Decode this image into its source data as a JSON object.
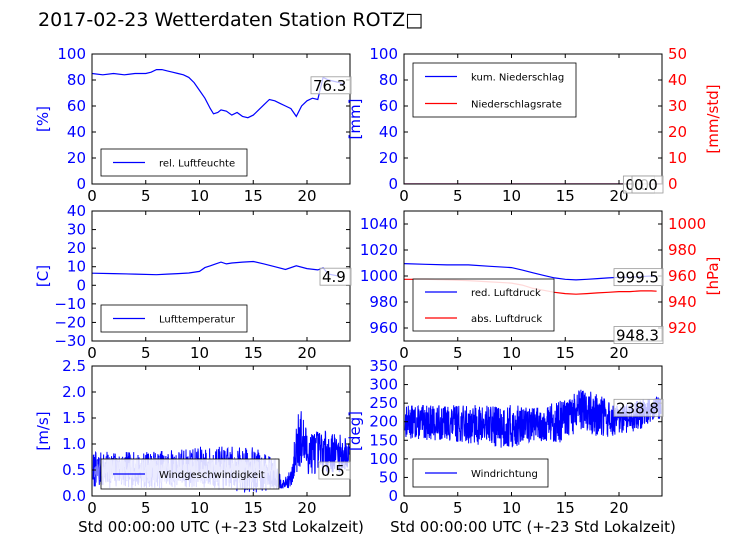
{
  "title": "2017-02-23 Wetterdaten Station ROTZ□",
  "xlabel": "Std 00:00:00 UTC (+-23 Std Lokalzeit)",
  "colors": {
    "primary": "#0000ff",
    "secondary": "#ff0000",
    "tertiary": "#7777ff",
    "axis_left": "#0000ff",
    "axis_right": "#ff0000"
  },
  "chart_data": [
    {
      "type": "line",
      "ylabel": "[%]",
      "xlim": [
        0,
        24
      ],
      "ylim": [
        0,
        100
      ],
      "yticks": [
        "0",
        "20",
        "40",
        "60",
        "80",
        "100"
      ],
      "xticks": [
        "0",
        "5",
        "10",
        "15",
        "20"
      ],
      "legend": "bottom-left",
      "series": [
        {
          "name": "rel. Luftfeuchte",
          "color": "#0000ff",
          "x": [
            0,
            1,
            2,
            3,
            4,
            5,
            5.5,
            6,
            6.5,
            7,
            7.5,
            8,
            8.5,
            9,
            9.5,
            10,
            10.5,
            11,
            11.3,
            11.7,
            12,
            12.5,
            13,
            13.5,
            14,
            14.5,
            15,
            15.5,
            16,
            16.5,
            17,
            17.5,
            18,
            18.5,
            19,
            19.5,
            20,
            20.5,
            21,
            21.5,
            22,
            23,
            23.5
          ],
          "y": [
            85,
            84,
            85,
            84,
            85,
            85,
            86,
            88,
            88,
            87,
            86,
            85,
            84,
            82,
            78,
            72,
            66,
            58,
            54,
            55,
            57,
            56,
            53,
            55,
            52,
            51,
            53,
            57,
            61,
            65,
            64,
            62,
            60,
            58,
            52,
            60,
            64,
            66,
            65,
            82,
            80,
            78,
            76.3
          ]
        }
      ],
      "annotations": [
        "76.3"
      ]
    },
    {
      "type": "line",
      "ylabel": "[mm]",
      "ylabel_right": "[mm/std]",
      "xlim": [
        0,
        24
      ],
      "ylim": [
        0,
        100
      ],
      "ylim_right": [
        0,
        50
      ],
      "yticks": [
        "0",
        "20",
        "40",
        "60",
        "80",
        "100"
      ],
      "yticks_right": [
        "0",
        "10",
        "20",
        "30",
        "40",
        "50"
      ],
      "xticks": [
        "0",
        "5",
        "10",
        "15",
        "20"
      ],
      "legend": "top-left",
      "series": [
        {
          "name": "kum. Niederschlag",
          "color": "#0000ff",
          "axis": "left",
          "x": [
            0,
            24
          ],
          "y": [
            0,
            0
          ]
        },
        {
          "name": "Niederschlagsrate",
          "color": "#ff0000",
          "axis": "right",
          "x": [
            0,
            24
          ],
          "y": [
            0,
            0
          ]
        }
      ],
      "annotations": [
        "0.0",
        "0.0"
      ]
    },
    {
      "type": "line",
      "ylabel": "[C]",
      "xlim": [
        0,
        24
      ],
      "ylim": [
        -30,
        40
      ],
      "yticks": [
        "−30",
        "−20",
        "−10",
        "0",
        "10",
        "20",
        "30",
        "40"
      ],
      "xticks": [
        "0",
        "5",
        "10",
        "15",
        "20"
      ],
      "legend": "bottom-left",
      "series": [
        {
          "name": "Lufttemperatur",
          "color": "#0000ff",
          "x": [
            0,
            2,
            4,
            6,
            7,
            8,
            9,
            10,
            10.5,
            11,
            11.5,
            12,
            12.5,
            13,
            14,
            15,
            16,
            17,
            18,
            19,
            20,
            21,
            21.5,
            22,
            23
          ],
          "y": [
            6.5,
            6.3,
            6.0,
            5.7,
            6.0,
            6.3,
            6.6,
            7.5,
            9.5,
            10.5,
            11.5,
            12.5,
            11.5,
            12.0,
            12.5,
            12.8,
            11.5,
            10,
            8.5,
            10.5,
            9,
            8.3,
            9.3,
            6.0,
            4.9
          ]
        }
      ],
      "annotations": [
        "4.9"
      ]
    },
    {
      "type": "line",
      "ylabel_right": "[hPa]",
      "xlim": [
        0,
        24
      ],
      "ylim": [
        950,
        1050
      ],
      "ylim_right": [
        910,
        1010
      ],
      "yticks": [
        "960",
        "980",
        "1000",
        "1020",
        "1040"
      ],
      "yticks_right": [
        "920",
        "940",
        "960",
        "980",
        "1000"
      ],
      "xticks": [
        "0",
        "5",
        "10",
        "15",
        "20"
      ],
      "legend": "bottom-left",
      "series": [
        {
          "name": "red. Luftdruck",
          "color": "#0000ff",
          "axis": "left",
          "x": [
            0,
            2,
            4,
            6,
            8,
            10,
            11,
            12,
            13,
            14,
            15,
            16,
            17,
            18,
            19,
            20,
            21,
            22,
            23,
            23.5
          ],
          "y": [
            1009.5,
            1009,
            1008.5,
            1008.5,
            1007.5,
            1006.5,
            1004.5,
            1002.5,
            1000.5,
            998.5,
            997.5,
            997,
            997.5,
            998,
            998.5,
            999,
            999,
            999.5,
            1000,
            999.5
          ]
        },
        {
          "name": "abs. Luftdruck",
          "color": "#ff0000",
          "axis": "right",
          "x": [
            0,
            2,
            4,
            6,
            8,
            10,
            11,
            12,
            13,
            14,
            15,
            16,
            17,
            18,
            19,
            20,
            21,
            22,
            23,
            23.5
          ],
          "y": [
            957.5,
            957.5,
            957,
            956.5,
            955.5,
            954.5,
            953,
            950.5,
            949,
            947.5,
            946.5,
            946,
            946.5,
            947,
            947.5,
            948,
            948,
            948.5,
            948.5,
            948.3
          ]
        }
      ],
      "annotations": [
        "999.5",
        "948.3"
      ]
    },
    {
      "type": "line",
      "ylabel": "[m/s]",
      "xlim": [
        0,
        24
      ],
      "ylim": [
        0,
        2.5
      ],
      "yticks": [
        "0.0",
        "0.5",
        "1.0",
        "1.5",
        "2.0",
        "2.5"
      ],
      "xticks": [
        "0",
        "5",
        "10",
        "15",
        "20"
      ],
      "legend": "bottom-left",
      "series": [
        {
          "name": "Windgeschwindigkeit",
          "color": "#0000ff",
          "noise": {
            "seed": 7,
            "samples": 900,
            "knots_x": [
              0,
              5,
              10,
              15,
              17,
              17.8,
              18.6,
              19.2,
              20,
              22,
              23.5
            ],
            "knots_base": [
              0.5,
              0.5,
              0.55,
              0.5,
              0.42,
              0.22,
              0.35,
              1.2,
              0.85,
              0.85,
              0.8
            ],
            "knots_amp": [
              0.35,
              0.35,
              0.4,
              0.45,
              0.3,
              0.08,
              0.2,
              0.7,
              0.45,
              0.4,
              0.35
            ]
          }
        }
      ],
      "annotations": [
        "0.5"
      ]
    },
    {
      "type": "line",
      "ylabel": "[deg]",
      "xlim": [
        0,
        24
      ],
      "ylim": [
        0,
        350
      ],
      "yticks": [
        "0",
        "50",
        "100",
        "150",
        "200",
        "250",
        "300",
        "350"
      ],
      "xticks": [
        "0",
        "5",
        "10",
        "15",
        "20"
      ],
      "legend": "bottom-left",
      "series": [
        {
          "name": "Windrichtung",
          "color": "#0000ff",
          "noise": {
            "seed": 13,
            "samples": 1100,
            "knots_x": [
              0,
              5,
              10,
              12,
              15,
              16.5,
              18,
              20,
              22,
              23.5
            ],
            "knots_base": [
              200,
              195,
              185,
              195,
              200,
              235,
              215,
              200,
              220,
              238
            ],
            "knots_amp": [
              45,
              50,
              60,
              45,
              60,
              55,
              60,
              40,
              40,
              30
            ]
          }
        }
      ],
      "annotations": [
        "238.8"
      ]
    }
  ]
}
